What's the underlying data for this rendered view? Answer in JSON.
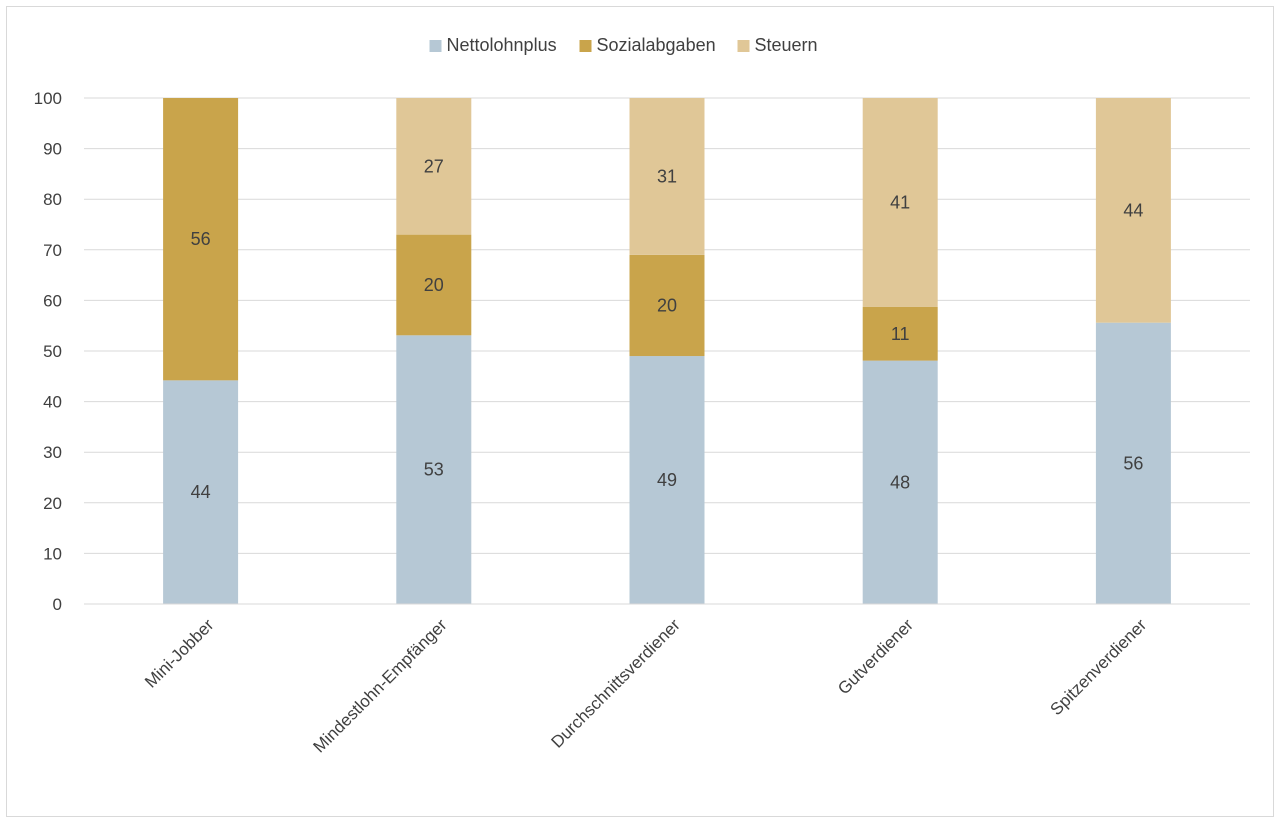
{
  "chart_data": {
    "type": "bar",
    "stacked": true,
    "categories": [
      "Mini-Jobber",
      "Mindestlohn-Empfänger",
      "Durchschnittsverdiener",
      "Gutverdiener",
      "Spitzenverdiener"
    ],
    "series": [
      {
        "name": "Nettolohnplus",
        "color": "#b6c8d5",
        "values": [
          44,
          53,
          49,
          48,
          56
        ]
      },
      {
        "name": "Sozialabgaben",
        "color": "#c9a44b",
        "values": [
          56,
          20,
          20,
          11,
          0
        ]
      },
      {
        "name": "Steuern",
        "color": "#e0c797",
        "values": [
          0,
          27,
          31,
          41,
          44
        ]
      }
    ],
    "plot_values": [
      [
        44.2,
        53.1,
        49.0,
        48.1,
        55.6
      ],
      [
        55.8,
        19.9,
        20.0,
        10.6,
        0
      ],
      [
        0,
        27.0,
        31.0,
        41.3,
        44.4
      ]
    ],
    "ylim": [
      0,
      100
    ],
    "yticks": [
      "0",
      "10",
      "20",
      "30",
      "40",
      "50",
      "60",
      "70",
      "80",
      "90",
      "100"
    ],
    "grid": true,
    "legend_position": "top",
    "xlabel": "",
    "ylabel": "",
    "title": ""
  }
}
